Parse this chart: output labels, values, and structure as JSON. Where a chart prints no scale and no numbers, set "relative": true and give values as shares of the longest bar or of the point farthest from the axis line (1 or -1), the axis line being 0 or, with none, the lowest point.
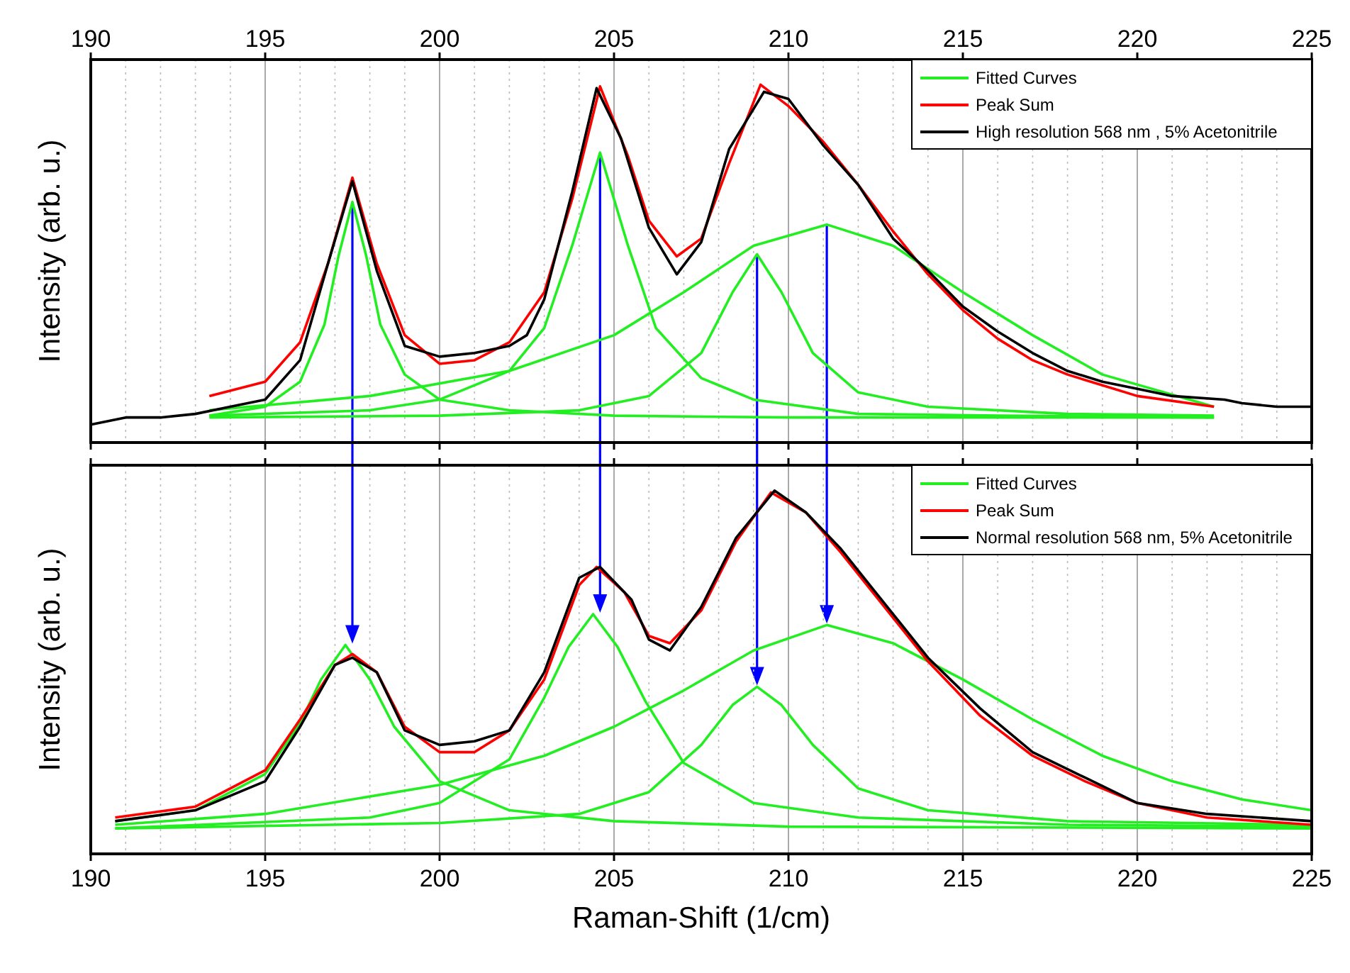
{
  "chart_data": [
    {
      "type": "line",
      "relative": true,
      "ylabel": "Intensity (arb. u.)",
      "xlim": [
        190,
        225
      ],
      "xticks": [
        190,
        195,
        200,
        205,
        210,
        215,
        220,
        225
      ],
      "tick_labels": false,
      "x2lim": [
        190,
        225
      ],
      "x2ticks": [
        190,
        195,
        200,
        205,
        210,
        215,
        220,
        225
      ],
      "grid": "x",
      "legend": "top right",
      "line_style": "solid",
      "marker": "none",
      "series": [
        {
          "name": "Fitted Curves",
          "color": "#22ee22",
          "x": [
            193.4,
            195,
            196,
            196.7,
            197.1,
            197.5,
            197.9,
            198.3,
            199,
            200,
            202,
            205,
            210,
            215,
            222.2
          ],
          "values": [
            0.075,
            0.1,
            0.17,
            0.33,
            0.52,
            0.672,
            0.52,
            0.33,
            0.19,
            0.12,
            0.09,
            0.075,
            0.07,
            0.07,
            0.07
          ]
        },
        {
          "color": "#22ee22",
          "x": [
            193.4,
            198,
            200,
            202,
            203,
            203.8,
            204.6,
            205.4,
            206.2,
            207.5,
            209,
            212,
            216,
            222.2
          ],
          "values": [
            0.075,
            0.09,
            0.12,
            0.2,
            0.32,
            0.55,
            0.81,
            0.55,
            0.32,
            0.18,
            0.12,
            0.08,
            0.075,
            0.07
          ]
        },
        {
          "color": "#22ee22",
          "x": [
            193.4,
            200,
            204,
            206,
            207.5,
            208.4,
            209.1,
            209.8,
            210.7,
            212,
            214,
            218,
            222.2
          ],
          "values": [
            0.07,
            0.075,
            0.09,
            0.13,
            0.25,
            0.42,
            0.526,
            0.42,
            0.25,
            0.14,
            0.1,
            0.08,
            0.075
          ]
        },
        {
          "color": "#22ee22",
          "x": [
            193.4,
            198,
            202,
            205,
            207,
            209,
            211.1,
            213,
            215,
            217,
            219,
            222.2
          ],
          "values": [
            0.09,
            0.13,
            0.2,
            0.3,
            0.42,
            0.55,
            0.609,
            0.55,
            0.42,
            0.3,
            0.19,
            0.1
          ]
        },
        {
          "name": "Peak Sum",
          "color": "#ff0000",
          "x": [
            193.4,
            195,
            196,
            196.8,
            197.5,
            198.2,
            199,
            200,
            201,
            202,
            203,
            203.8,
            204.6,
            205.4,
            206,
            206.8,
            207.5,
            208.3,
            209.2,
            210,
            211,
            212,
            213,
            214,
            215,
            216,
            217,
            218,
            219,
            220,
            222.2
          ],
          "values": [
            0.13,
            0.17,
            0.28,
            0.5,
            0.74,
            0.5,
            0.3,
            0.22,
            0.23,
            0.28,
            0.42,
            0.68,
            0.995,
            0.8,
            0.62,
            0.52,
            0.57,
            0.78,
            1,
            0.94,
            0.84,
            0.72,
            0.59,
            0.47,
            0.37,
            0.29,
            0.23,
            0.19,
            0.16,
            0.13,
            0.1
          ]
        },
        {
          "name": "High resolution 568 nm , 5% Acetonitrile",
          "color": "#000000",
          "x": [
            190,
            191,
            192,
            193,
            194,
            195,
            196,
            196.8,
            197.5,
            198.2,
            199,
            200,
            201,
            202,
            202.5,
            203,
            203.8,
            204.5,
            205.2,
            206,
            206.8,
            207.5,
            208.3,
            209.3,
            210,
            211,
            212,
            213,
            214,
            215,
            216,
            217,
            218,
            219,
            220,
            221,
            222.5,
            223,
            224,
            225
          ],
          "values": [
            0.05,
            0.07,
            0.07,
            0.08,
            0.1,
            0.12,
            0.23,
            0.5,
            0.73,
            0.48,
            0.27,
            0.24,
            0.25,
            0.27,
            0.3,
            0.4,
            0.7,
            0.99,
            0.85,
            0.6,
            0.47,
            0.56,
            0.82,
            0.98,
            0.96,
            0.83,
            0.72,
            0.57,
            0.48,
            0.38,
            0.31,
            0.25,
            0.2,
            0.17,
            0.15,
            0.13,
            0.12,
            0.11,
            0.1,
            0.1
          ]
        }
      ]
    },
    {
      "type": "line",
      "relative": true,
      "ylabel": "Intensity (arb. u.)",
      "xlabel": "Raman-Shift (1/cm)",
      "xlim": [
        190,
        225
      ],
      "xticks": [
        190,
        195,
        200,
        205,
        210,
        215,
        220,
        225
      ],
      "grid": "x",
      "legend": "top right",
      "line_style": "solid",
      "marker": "none",
      "series": [
        {
          "name": "Fitted Curves",
          "color": "#22ee22",
          "x": [
            190.7,
            193,
            195,
            196,
            196.6,
            197.3,
            198,
            198.7,
            200,
            202,
            205,
            210,
            225
          ],
          "values": [
            0.09,
            0.12,
            0.22,
            0.36,
            0.48,
            0.575,
            0.48,
            0.35,
            0.2,
            0.12,
            0.09,
            0.075,
            0.07
          ]
        },
        {
          "color": "#22ee22",
          "x": [
            190.7,
            198,
            200,
            202,
            203,
            203.7,
            204.4,
            205.1,
            205.9,
            207,
            209,
            212,
            218,
            225
          ],
          "values": [
            0.07,
            0.1,
            0.14,
            0.26,
            0.43,
            0.57,
            0.66,
            0.57,
            0.42,
            0.25,
            0.14,
            0.1,
            0.08,
            0.075
          ]
        },
        {
          "color": "#22ee22",
          "x": [
            190.7,
            200,
            204,
            206,
            207.5,
            208.4,
            209.1,
            209.8,
            210.7,
            212,
            214,
            218,
            225
          ],
          "values": [
            0.07,
            0.085,
            0.11,
            0.17,
            0.3,
            0.41,
            0.46,
            0.41,
            0.3,
            0.18,
            0.12,
            0.09,
            0.08
          ]
        },
        {
          "color": "#22ee22",
          "x": [
            190.7,
            195,
            200,
            203,
            205,
            207,
            209,
            211.1,
            213,
            215,
            217,
            219,
            221,
            223,
            225
          ],
          "values": [
            0.08,
            0.11,
            0.19,
            0.27,
            0.35,
            0.45,
            0.56,
            0.63,
            0.58,
            0.48,
            0.37,
            0.27,
            0.2,
            0.15,
            0.12
          ]
        },
        {
          "name": "Peak Sum",
          "color": "#ff0000",
          "x": [
            190.7,
            193,
            195,
            196,
            197,
            197.5,
            198.2,
            199,
            200,
            201,
            202,
            203,
            204,
            204.5,
            205.3,
            206,
            206.6,
            207.5,
            208.5,
            209.5,
            210.5,
            211.5,
            212.5,
            214,
            215.5,
            217,
            218.5,
            220,
            222,
            225
          ],
          "values": [
            0.1,
            0.13,
            0.23,
            0.37,
            0.52,
            0.55,
            0.5,
            0.35,
            0.28,
            0.28,
            0.34,
            0.48,
            0.74,
            0.79,
            0.72,
            0.6,
            0.58,
            0.67,
            0.86,
            0.995,
            0.94,
            0.83,
            0.71,
            0.53,
            0.38,
            0.27,
            0.2,
            0.14,
            0.1,
            0.08
          ]
        },
        {
          "name": "Normal resolution 568 nm, 5% Acetonitrile",
          "color": "#000000",
          "x": [
            190.7,
            193,
            195,
            196,
            197,
            197.5,
            198.2,
            199,
            200,
            201,
            202,
            203,
            204,
            204.6,
            205.5,
            206,
            206.6,
            207.5,
            208.5,
            209.6,
            210.5,
            211.5,
            212.5,
            214,
            215.5,
            217,
            218.5,
            220,
            222,
            225
          ],
          "values": [
            0.09,
            0.12,
            0.2,
            0.35,
            0.52,
            0.54,
            0.5,
            0.34,
            0.3,
            0.31,
            0.34,
            0.5,
            0.76,
            0.79,
            0.7,
            0.59,
            0.56,
            0.68,
            0.87,
            1,
            0.94,
            0.84,
            0.72,
            0.54,
            0.4,
            0.28,
            0.21,
            0.14,
            0.11,
            0.09
          ]
        }
      ]
    }
  ]
}
